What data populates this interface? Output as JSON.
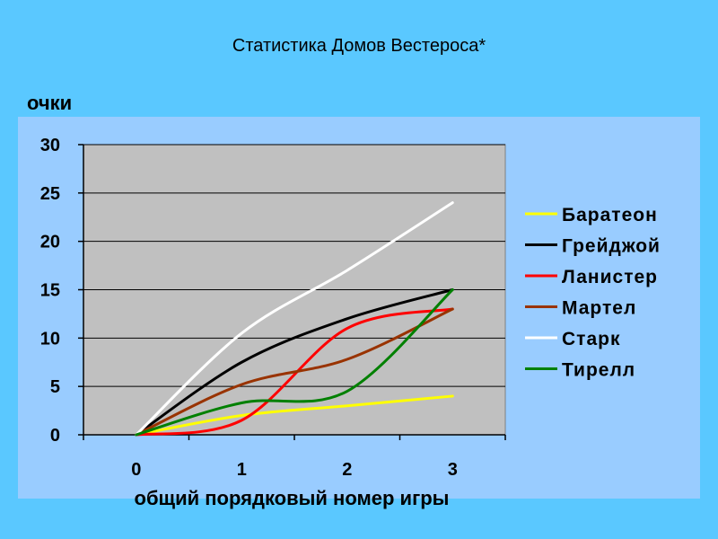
{
  "chart_data": {
    "type": "line",
    "title": "Статистика Домов Вестероса*",
    "ylabel": "очки",
    "xlabel": "общий порядковый номер игры",
    "x": [
      0,
      1,
      2,
      3
    ],
    "x_tick_labels": [
      "0",
      "1",
      "2",
      "3"
    ],
    "y_ticks": [
      0,
      5,
      10,
      15,
      20,
      25,
      30
    ],
    "y_tick_labels": [
      "0",
      "5",
      "10",
      "15",
      "20",
      "25",
      "30"
    ],
    "ylim": [
      0,
      30
    ],
    "grid": "horizontal",
    "legend_position": "right",
    "smooth": true,
    "plot_bg": "#c0c0c0",
    "series": [
      {
        "name": "Баратеон",
        "color": "#ffff00",
        "values": [
          0,
          2,
          3,
          4
        ]
      },
      {
        "name": "Грейджой",
        "color": "#000000",
        "values": [
          0,
          7.5,
          12,
          15
        ]
      },
      {
        "name": "Ланистер",
        "color": "#ff0000",
        "values": [
          0,
          1.5,
          11,
          13
        ]
      },
      {
        "name": "Мартел",
        "color": "#993300",
        "values": [
          0,
          5.2,
          7.8,
          13
        ]
      },
      {
        "name": "Старк",
        "color": "#ffffff",
        "values": [
          0,
          10.5,
          17,
          24
        ]
      },
      {
        "name": "Тирелл",
        "color": "#008000",
        "values": [
          0,
          3.3,
          4.5,
          15
        ]
      }
    ]
  }
}
